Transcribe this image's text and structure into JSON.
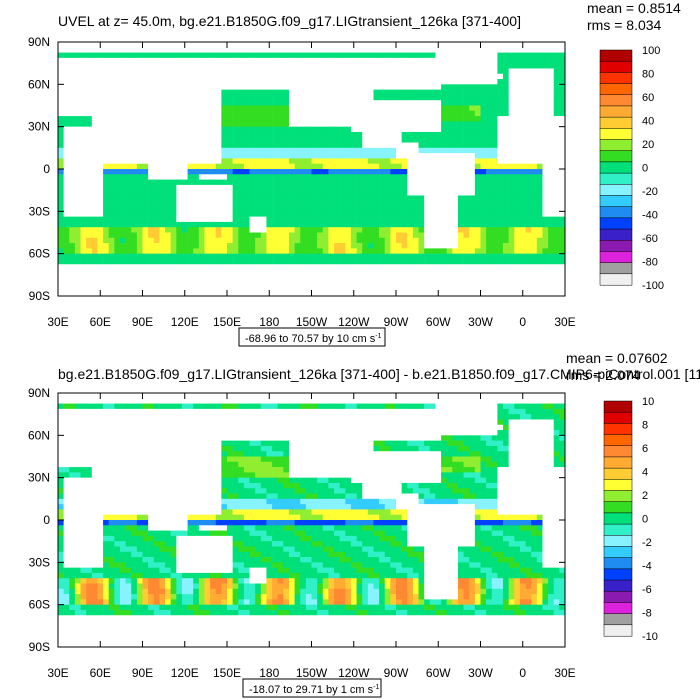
{
  "chart_data": [
    {
      "type": "heatmap",
      "title": "UVEL at z=  45.0m, bg.e21.B1850G.f09_g17.LIGtransient_126ka [371-400]",
      "stats": {
        "mean": "mean = 0.8514",
        "rms": "rms = 8.034"
      },
      "range_label": "-68.96 to 70.57 by 10 cm s",
      "range_unit_exponent": "-1",
      "colorbar": {
        "levels": [
          "100",
          "80",
          "60",
          "40",
          "20",
          "0",
          "-20",
          "-40",
          "-60",
          "-80",
          "-100"
        ],
        "min": -100,
        "max": 100,
        "step": 10
      },
      "x_ticks": [
        "30E",
        "60E",
        "90E",
        "120E",
        "150E",
        "180",
        "150W",
        "120W",
        "90W",
        "60W",
        "30W",
        "0",
        "30E"
      ],
      "y_ticks": [
        "90N",
        "60N",
        "30N",
        "0",
        "30S",
        "60S",
        "90S"
      ],
      "lon_range": [
        30,
        390
      ],
      "lat_range": [
        -90,
        90
      ]
    },
    {
      "type": "heatmap",
      "title": "bg.e21.B1850G.f09_g17.LIGtransient_126ka [371-400] - b.e21.B1850.f09_g17.CMIP6-piControl.001 [11",
      "stats": {
        "mean": "mean = 0.07602",
        "rms": "rms = 2.074"
      },
      "range_label": "-18.07 to 29.71 by 1 cm s",
      "range_unit_exponent": "-1",
      "colorbar": {
        "levels": [
          "10",
          "8",
          "6",
          "4",
          "2",
          "0",
          "-2",
          "-4",
          "-6",
          "-8",
          "-10"
        ],
        "min": -10,
        "max": 10,
        "step": 1
      },
      "x_ticks": [
        "30E",
        "60E",
        "90E",
        "120E",
        "150E",
        "180",
        "150W",
        "120W",
        "90W",
        "60W",
        "30W",
        "0",
        "30E"
      ],
      "y_ticks": [
        "90N",
        "60N",
        "30N",
        "0",
        "30S",
        "60S",
        "90S"
      ],
      "lon_range": [
        30,
        390
      ],
      "lat_range": [
        -90,
        90
      ]
    }
  ],
  "palette": [
    "#f0f0f0",
    "#a0a0a0",
    "#dd22dd",
    "#8a1ab0",
    "#3a20c8",
    "#0040ff",
    "#1e8cf0",
    "#33ccff",
    "#87f3ff",
    "#30f0c8",
    "#00e07a",
    "#33dd22",
    "#90ee30",
    "#ffff33",
    "#ffcc33",
    "#ffaa33",
    "#ff8833",
    "#ff6600",
    "#ff3300",
    "#e00000",
    "#b00000"
  ],
  "land_color": "#ffffff"
}
